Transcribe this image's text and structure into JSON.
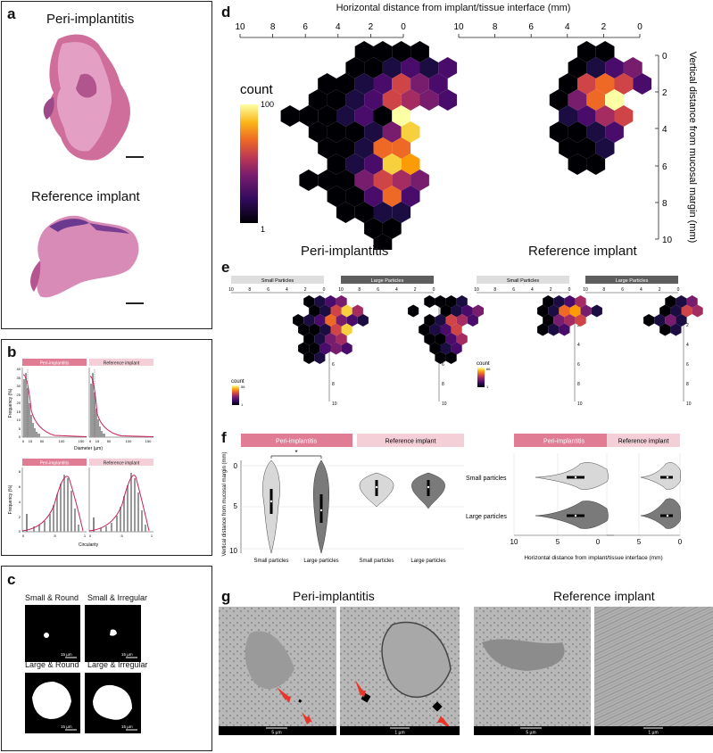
{
  "panel_letters": {
    "a": "a",
    "b": "b",
    "c": "c",
    "d": "d",
    "e": "e",
    "f": "f",
    "g": "g"
  },
  "panel_a": {
    "top_title": "Peri-implantitis",
    "bottom_title": "Reference implant"
  },
  "panel_b": {
    "tab_peri": "Peri-implantitis",
    "tab_ref": "Reference implant",
    "tab_peri2": "Peri-implantitis",
    "tab_ref2": "Reference implant",
    "y_label_top": "Frequency (%)",
    "y_label_bottom": "Frequency (%)",
    "x_label_top": "Diameter (µm)",
    "x_label_bottom": "Circularity",
    "y_ticks_top": [
      "40",
      "35",
      "30",
      "25",
      "20",
      "15",
      "10",
      "5",
      "0"
    ],
    "x_ticks_top": [
      "0",
      "15",
      "50",
      "100",
      "150"
    ],
    "y_ticks_bottom": [
      "8",
      "6",
      "4",
      "2",
      "0"
    ],
    "x_ticks_bottom": [
      "0",
      ".5",
      "1"
    ]
  },
  "panel_c": {
    "labels": [
      "Small & Round",
      "Small & Irregular",
      "Large & Round",
      "Large & Irregular"
    ],
    "scale": "15 µm"
  },
  "panel_d": {
    "x_axis_title": "Horizontal distance from implant/tissue interface (mm)",
    "y_axis_title": "Vertical distance from mucosal margin (mm)",
    "x_ticks": [
      "10",
      "8",
      "6",
      "4",
      "2",
      "0"
    ],
    "y_ticks": [
      "0",
      "2",
      "4",
      "6",
      "8",
      "10"
    ],
    "legend_title": "count",
    "legend_max": "100",
    "legend_min": "1",
    "left_label": "Peri-implantitis",
    "right_label": "Reference implant"
  },
  "panel_e": {
    "tabs": [
      "Small Particles",
      "Large Particles",
      "Small Particles",
      "Large Particles"
    ],
    "x_ticks": [
      "10",
      "8",
      "6",
      "4",
      "2",
      "0"
    ],
    "y_ticks": [
      "0",
      "2",
      "4",
      "6",
      "8",
      "10"
    ],
    "legend_left": {
      "title": "count",
      "max": "56",
      "min": "1"
    },
    "legend_right": {
      "title": "count",
      "max": "66",
      "min": "1"
    }
  },
  "panel_f": {
    "tabs": [
      "Peri-implantitis",
      "Reference implant",
      "Peri-implantitis",
      "Reference implant"
    ],
    "y_label": "Vertical distance from mucosal margin (mm)",
    "y_ticks": [
      "0",
      "5",
      "10"
    ],
    "x_cat_left": [
      "Small particles",
      "Large particles",
      "Small particles",
      "Large particles"
    ],
    "row_labels": [
      "Small particles",
      "Large particles"
    ],
    "x_ticks_h": [
      "10",
      "5",
      "0"
    ],
    "x_label_h": "Horizontal distance from implant/tissue interface (mm)",
    "sig": "*"
  },
  "panel_g": {
    "left_title": "Peri-implantitis",
    "right_title": "Reference implant",
    "scales": [
      "5 µm",
      "1 µm",
      "5 µm",
      "1 µm"
    ]
  },
  "colors": {
    "peri": "#e07d95",
    "ref": "#f5cfd8",
    "tab_small": "#dedede",
    "tab_large": "#5e5e5e",
    "arrow": "#e8352b"
  }
}
